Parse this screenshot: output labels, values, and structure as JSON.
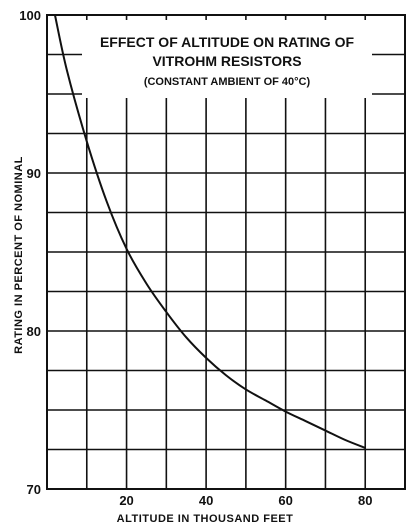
{
  "chart_data": {
    "type": "line",
    "title_lines": [
      "EFFECT OF ALTITUDE ON RATING OF",
      "VITROHM RESISTORS"
    ],
    "subtitle": "(CONSTANT AMBIENT OF 40°C)",
    "xlabel": "ALTITUDE IN THOUSAND FEET",
    "ylabel": "RATING IN PERCENT OF NOMINAL",
    "xlim": [
      0,
      90
    ],
    "ylim": [
      70,
      100
    ],
    "x_ticks": [
      20,
      40,
      60,
      80
    ],
    "y_ticks": [
      70,
      80,
      90,
      100
    ],
    "x_grid_step": 10,
    "y_grid_step": 2.5,
    "grid": true,
    "series": [
      {
        "x": [
          2,
          5,
          10,
          15,
          20,
          25,
          30,
          35,
          40,
          45,
          50,
          55,
          60,
          65,
          70,
          75,
          80
        ],
        "y": [
          100,
          96.5,
          92,
          88.2,
          85.2,
          83,
          81.2,
          79.6,
          78.3,
          77.2,
          76.3,
          75.6,
          74.9,
          74.3,
          73.7,
          73.1,
          72.6
        ]
      }
    ]
  }
}
